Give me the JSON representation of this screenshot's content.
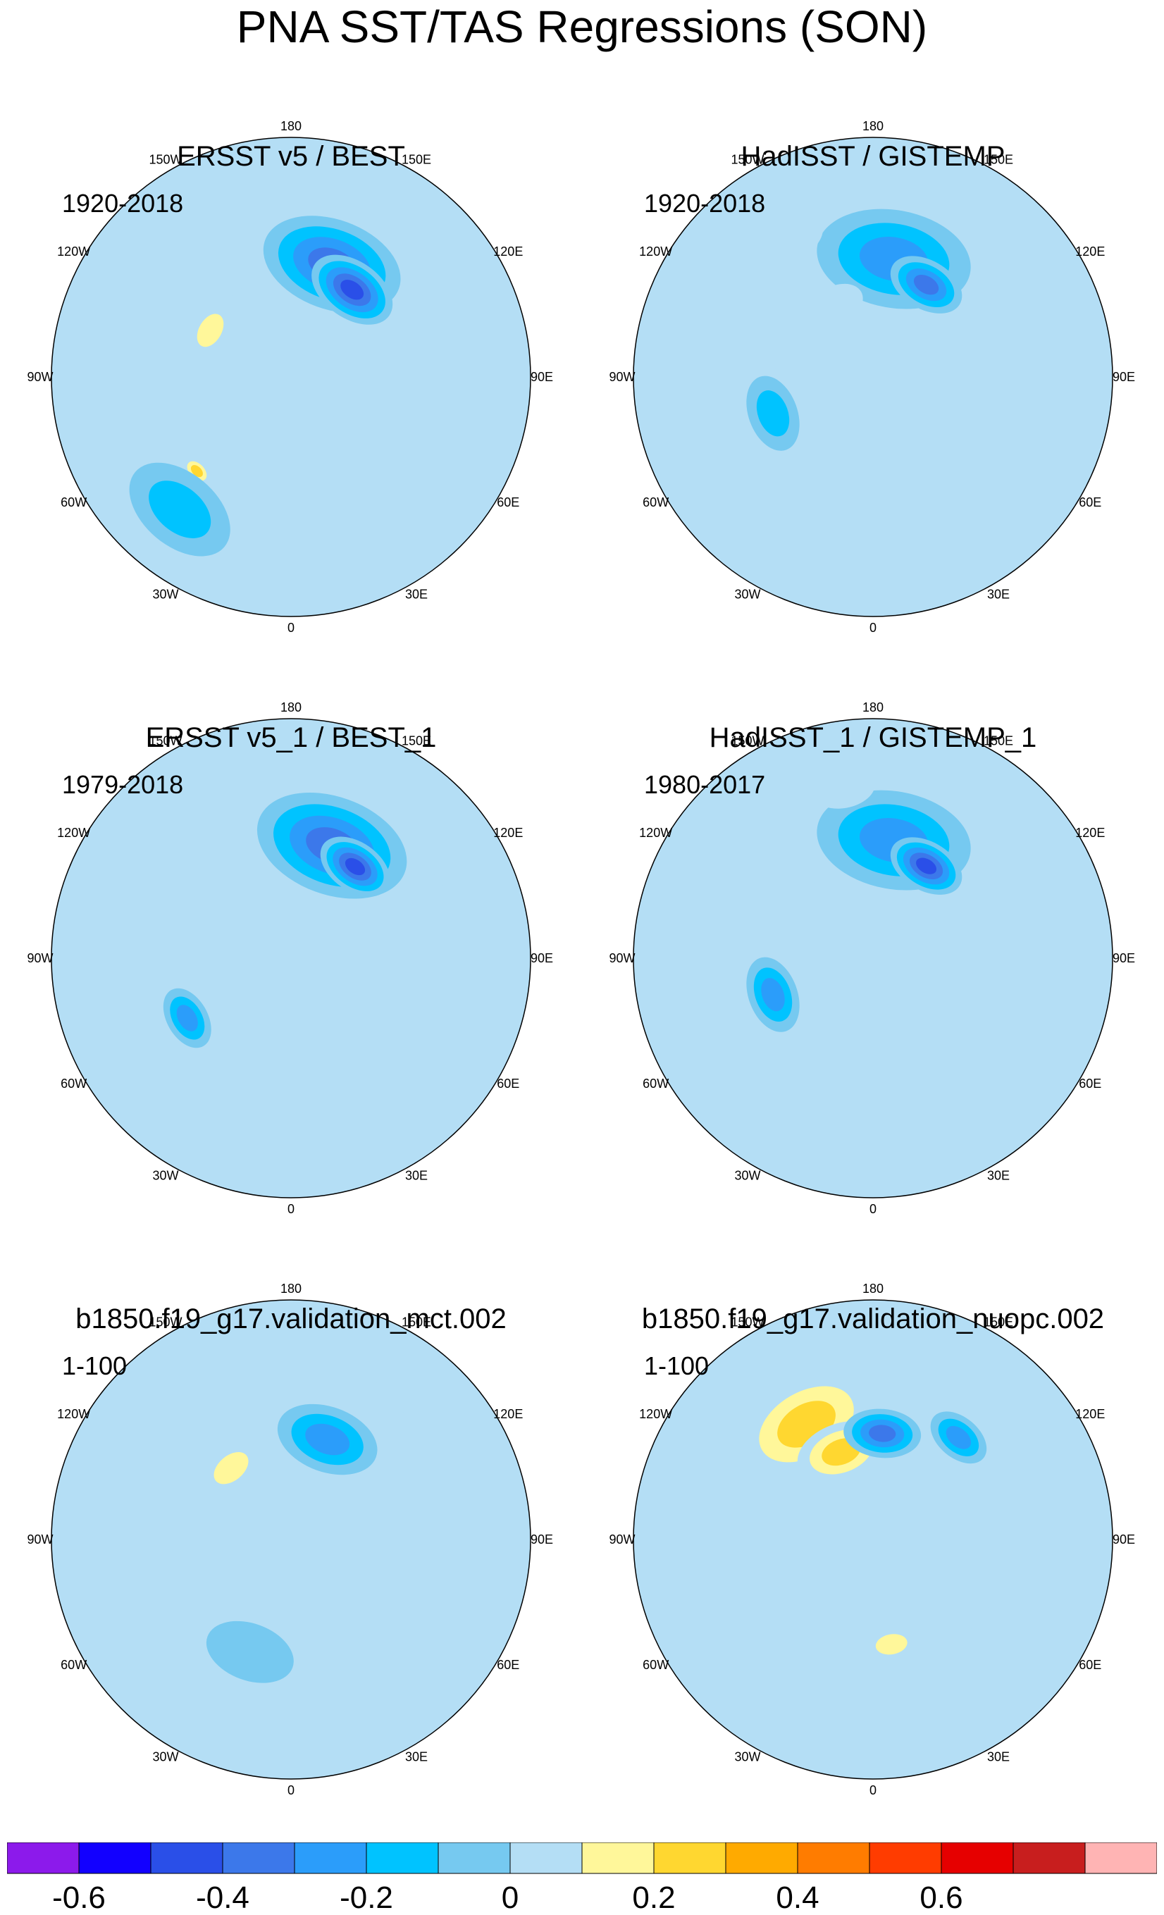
{
  "title": "PNA SST/TAS Regressions (SON)",
  "longitude_labels": {
    "top": "180",
    "upper_left": "150W",
    "upper_right": "150E",
    "left_upper": "120W",
    "right_upper": "120E",
    "left": "90W",
    "right": "90E",
    "left_lower": "60W",
    "right_lower": "60E",
    "lower_left": "30W",
    "lower_right": "30E",
    "bottom": "0"
  },
  "panels": [
    {
      "title": "ERSST v5 / BEST",
      "period": "1920-2018",
      "blobs": [
        {
          "lon": 160,
          "lat": 45,
          "r": 0.22,
          "value": -0.4
        },
        {
          "lon": 145,
          "lat": 50,
          "r": 0.14,
          "value": -0.5
        },
        {
          "lon": -120,
          "lat": 55,
          "r": 0.09,
          "value": 0.2
        },
        {
          "lon": -150,
          "lat": 58,
          "r": 0.08,
          "value": 0.15
        },
        {
          "lon": -40,
          "lat": 45,
          "r": 0.09,
          "value": 0.15
        },
        {
          "lon": -45,
          "lat": 40,
          "r": 0.05,
          "value": 0.25
        },
        {
          "lon": -40,
          "lat": 25,
          "r": 0.18,
          "value": -0.2
        },
        {
          "lon": 60,
          "lat": 60,
          "r": 0.12,
          "value": 0.1
        },
        {
          "lon": 20,
          "lat": 40,
          "r": 0.08,
          "value": 0.1
        }
      ]
    },
    {
      "title": "HadISST / GISTEMP",
      "period": "1920-2018",
      "blobs": [
        {
          "lon": 170,
          "lat": 45,
          "r": 0.24,
          "value": -0.3
        },
        {
          "lon": 150,
          "lat": 50,
          "r": 0.12,
          "value": -0.4
        },
        {
          "lon": -150,
          "lat": 60,
          "r": 0.1,
          "value": 0.15
        },
        {
          "lon": -110,
          "lat": 55,
          "r": 0.08,
          "value": 0.1
        },
        {
          "lon": 40,
          "lat": 55,
          "r": 0.14,
          "value": 0.12
        },
        {
          "lon": -70,
          "lat": 50,
          "r": 0.12,
          "value": -0.2
        },
        {
          "lon": -150,
          "lat": 30,
          "r": 0.1,
          "value": 0.1
        }
      ]
    },
    {
      "title": "ERSST v5_1 / BEST_1",
      "period": "1979-2018",
      "blobs": [
        {
          "lon": 160,
          "lat": 45,
          "r": 0.24,
          "value": -0.4
        },
        {
          "lon": 145,
          "lat": 48,
          "r": 0.12,
          "value": -0.5
        },
        {
          "lon": -110,
          "lat": 55,
          "r": 0.12,
          "value": 0.12
        },
        {
          "lon": -60,
          "lat": 45,
          "r": 0.1,
          "value": -0.25
        },
        {
          "lon": -30,
          "lat": 40,
          "r": 0.08,
          "value": 0.1
        },
        {
          "lon": 120,
          "lat": 20,
          "r": 0.1,
          "value": 0.1
        }
      ]
    },
    {
      "title": "HadISST_1 / GISTEMP_1",
      "period": "1980-2017",
      "blobs": [
        {
          "lon": 170,
          "lat": 45,
          "r": 0.24,
          "value": -0.35
        },
        {
          "lon": 150,
          "lat": 50,
          "r": 0.12,
          "value": -0.5
        },
        {
          "lon": -170,
          "lat": 25,
          "r": 0.1,
          "value": 0.12
        },
        {
          "lon": -70,
          "lat": 50,
          "r": 0.12,
          "value": -0.25
        },
        {
          "lon": 30,
          "lat": 55,
          "r": 0.1,
          "value": 0.12
        },
        {
          "lon": -140,
          "lat": 60,
          "r": 0.08,
          "value": 0.1
        }
      ]
    },
    {
      "title": "b1850.f19_g17.validation_mct.002",
      "period": "1-100",
      "blobs": [
        {
          "lon": 170,
          "lat": 45,
          "r": 0.3,
          "value": 0.1
        },
        {
          "lon": 160,
          "lat": 50,
          "r": 0.16,
          "value": -0.3
        },
        {
          "lon": -140,
          "lat": 55,
          "r": 0.1,
          "value": 0.2
        },
        {
          "lon": -40,
          "lat": 40,
          "r": 0.08,
          "value": 0.15
        },
        {
          "lon": -20,
          "lat": 45,
          "r": 0.14,
          "value": -0.15
        },
        {
          "lon": 60,
          "lat": 50,
          "r": 0.16,
          "value": 0.1
        },
        {
          "lon": 120,
          "lat": 40,
          "r": 0.12,
          "value": 0.1
        }
      ]
    },
    {
      "title": "b1850.f19_g17.validation_nuopc.002",
      "period": "1-100",
      "blobs": [
        {
          "lon": -150,
          "lat": 40,
          "r": 0.22,
          "value": 0.3
        },
        {
          "lon": -160,
          "lat": 55,
          "r": 0.14,
          "value": 0.35
        },
        {
          "lon": 175,
          "lat": 50,
          "r": 0.12,
          "value": -0.4
        },
        {
          "lon": 140,
          "lat": 40,
          "r": 0.1,
          "value": -0.25
        },
        {
          "lon": -60,
          "lat": 45,
          "r": 0.16,
          "value": 0.15
        },
        {
          "lon": 60,
          "lat": 55,
          "r": 0.2,
          "value": 0.1
        },
        {
          "lon": 10,
          "lat": 50,
          "r": 0.08,
          "value": 0.2
        }
      ]
    }
  ],
  "colorbar": {
    "colors": [
      "#8c1aeb",
      "#1200ff",
      "#2a4fe8",
      "#3c78ea",
      "#2b9dfa",
      "#00c3ff",
      "#76c9f0",
      "#b4def5",
      "#fff79a",
      "#ffd730",
      "#ffaa00",
      "#ff7c00",
      "#ff3c00",
      "#e60000",
      "#c81e1e",
      "#ffb4b4"
    ],
    "ticks": [
      {
        "value": -0.6,
        "label": "-0.6"
      },
      {
        "value": -0.4,
        "label": "-0.4"
      },
      {
        "value": -0.2,
        "label": "-0.2"
      },
      {
        "value": 0,
        "label": "0"
      },
      {
        "value": 0.2,
        "label": "0.2"
      },
      {
        "value": 0.4,
        "label": "0.4"
      },
      {
        "value": 0.6,
        "label": "0.6"
      }
    ]
  }
}
